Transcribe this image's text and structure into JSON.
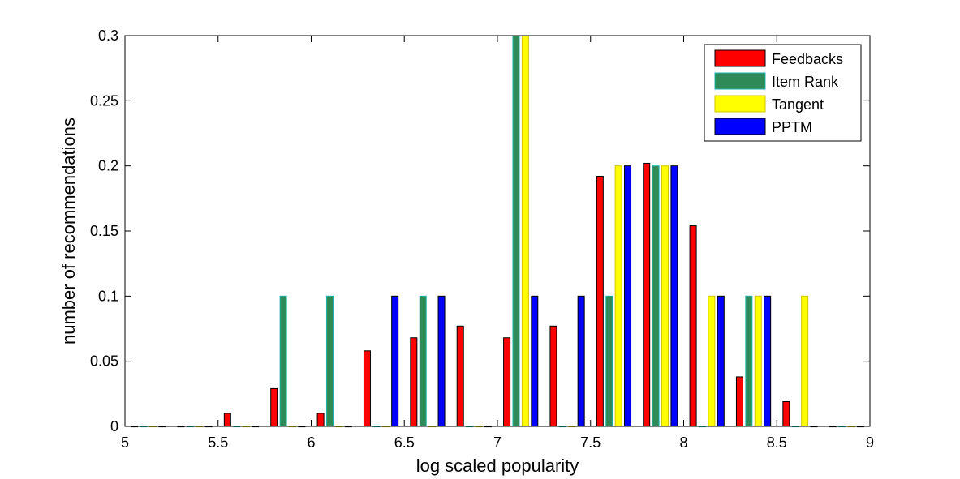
{
  "chart_data": {
    "type": "bar",
    "title": "",
    "xlabel": "log scaled popularity",
    "ylabel": "number of recommendations",
    "xlim": [
      5,
      9
    ],
    "ylim": [
      0,
      0.3
    ],
    "xticks": [
      "5",
      "5.5",
      "6",
      "6.5",
      "7",
      "7.5",
      "8",
      "8.5",
      "9"
    ],
    "yticks": [
      "0",
      "0.05",
      "0.1",
      "0.15",
      "0.2",
      "0.25",
      "0.3"
    ],
    "bin_centers": [
      5.125,
      5.375,
      5.625,
      5.875,
      6.125,
      6.375,
      6.625,
      6.875,
      7.125,
      7.375,
      7.625,
      7.875,
      8.125,
      8.375,
      8.625,
      8.875
    ],
    "grid": false,
    "legend_position": "top-right",
    "series": [
      {
        "name": "Feedbacks",
        "color": "#ff0000",
        "edge": "#000000",
        "values": [
          0,
          0,
          0.01,
          0.029,
          0.01,
          0.058,
          0.068,
          0.077,
          0.068,
          0.077,
          0.192,
          0.202,
          0.154,
          0.038,
          0.019,
          0
        ]
      },
      {
        "name": "Item Rank",
        "color": "#2e8b57",
        "edge": "#20b2aa",
        "values": [
          0,
          0,
          0,
          0.1,
          0.1,
          0,
          0.1,
          0,
          0.3,
          0,
          0.1,
          0.2,
          0,
          0.1,
          0,
          0
        ]
      },
      {
        "name": "Tangent",
        "color": "#ffff00",
        "edge": "#d4c400",
        "values": [
          0,
          0,
          0,
          0,
          0,
          0,
          0,
          0,
          0.3,
          0,
          0.2,
          0.2,
          0.1,
          0.1,
          0.1,
          0
        ]
      },
      {
        "name": "PPTM",
        "color": "#0000ff",
        "edge": "#000000",
        "values": [
          0,
          0,
          0,
          0,
          0,
          0.1,
          0.1,
          0,
          0.1,
          0.1,
          0.2,
          0.2,
          0.1,
          0.1,
          0,
          0
        ]
      }
    ]
  }
}
